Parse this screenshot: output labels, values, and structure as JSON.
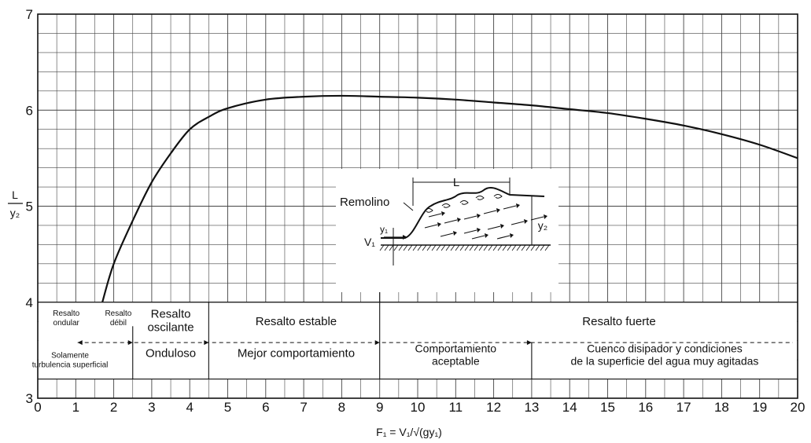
{
  "chart_data": {
    "type": "line",
    "title": "",
    "xlabel": "F₁ = V₁/√(gy₁)",
    "ylabel_num": "L",
    "ylabel_den": "y₂",
    "xlim": [
      0,
      20
    ],
    "ylim": [
      3,
      7
    ],
    "xticks": [
      0,
      1,
      2,
      3,
      4,
      5,
      6,
      7,
      8,
      9,
      10,
      11,
      12,
      13,
      14,
      15,
      16,
      17,
      18,
      19,
      20
    ],
    "yticks": [
      3,
      4,
      5,
      6,
      7
    ],
    "grid": true,
    "series": [
      {
        "x": [
          1.7,
          2.0,
          2.5,
          3.0,
          3.5,
          4.0,
          4.5,
          5.0,
          6.0,
          7.0,
          8.0,
          9.0,
          10.0,
          11.0,
          12.0,
          13.0,
          14.0,
          15.0,
          16.0,
          17.0,
          18.0,
          19.0,
          20.0
        ],
        "y": [
          4.0,
          4.4,
          4.85,
          5.25,
          5.55,
          5.8,
          5.93,
          6.02,
          6.11,
          6.14,
          6.15,
          6.14,
          6.13,
          6.11,
          6.08,
          6.05,
          6.01,
          5.97,
          5.91,
          5.84,
          5.75,
          5.64,
          5.5
        ]
      }
    ],
    "regions": [
      {
        "x0": 0,
        "x1": 1.7,
        "top_lines": [
          "Resalto",
          "ondular"
        ],
        "bottom_lines": [
          "Solamente",
          "turbulencia superficial"
        ]
      },
      {
        "x0": 1.7,
        "x1": 2.5,
        "top_lines": [
          "Resalto",
          "débil"
        ],
        "bottom_lines": []
      },
      {
        "x0": 2.5,
        "x1": 4.5,
        "top_lines": [
          "Resalto",
          "oscilante"
        ],
        "bottom_lines": [
          "Onduloso"
        ]
      },
      {
        "x0": 4.5,
        "x1": 9.0,
        "top_lines": [
          "Resalto estable"
        ],
        "bottom_lines": [
          "Mejor comportamiento"
        ]
      },
      {
        "x0": 9.0,
        "x1": 13.0,
        "top_lines": [],
        "bottom_lines": [
          "Comportamiento",
          "aceptable"
        ]
      },
      {
        "x0": 13.0,
        "x1": 20.0,
        "top_lines": [],
        "bottom_lines": [
          "Cuenco disipador y condiciones",
          "de la superficie del agua muy agitadas"
        ]
      },
      {
        "x0": 9.0,
        "x1": 20.0,
        "top_lines": [
          "Resalto fuerte"
        ],
        "bottom_lines": []
      }
    ],
    "inset": {
      "label_eddy": "Remolino",
      "label_length": "L",
      "label_y1": "y₁",
      "label_y2": "y₂",
      "label_v1": "V₁"
    }
  }
}
